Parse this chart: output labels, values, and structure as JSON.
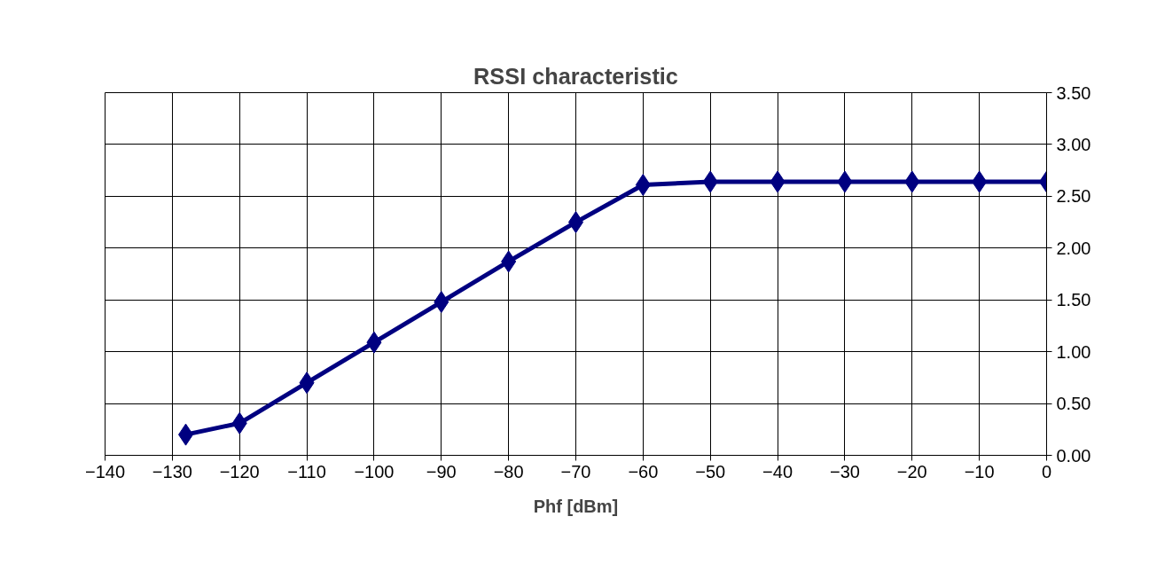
{
  "chart_data": {
    "type": "line",
    "title": "RSSI characteristic",
    "xlabel": "Phf [dBm]",
    "x": [
      -128,
      -120,
      -110,
      -100,
      -90,
      -80,
      -70,
      -60,
      -50,
      -40,
      -30,
      -20,
      -10,
      0
    ],
    "series": [
      {
        "color": "#000080",
        "values": [
          0.2,
          0.31,
          0.7,
          1.09,
          1.48,
          1.87,
          2.25,
          2.61,
          2.64,
          2.64,
          2.64,
          2.64,
          2.64,
          2.64
        ]
      }
    ],
    "xlim": [
      -140,
      0
    ],
    "xticks": [
      -140,
      -130,
      -120,
      -110,
      -100,
      -90,
      -80,
      -70,
      -60,
      -50,
      -40,
      -30,
      -20,
      -10,
      0
    ],
    "ylim": [
      0,
      3.5
    ],
    "yticks": [
      {
        "value": 0,
        "label": "0.00"
      },
      {
        "value": 0.5,
        "label": "0.50"
      },
      {
        "value": 1,
        "label": "1.00"
      },
      {
        "value": 1.5,
        "label": "1.50"
      },
      {
        "value": 2,
        "label": "2.00"
      },
      {
        "value": 2.5,
        "label": "2.50"
      },
      {
        "value": 3,
        "label": "3.00"
      },
      {
        "value": 3.5,
        "label": "3.50"
      }
    ],
    "grid": true,
    "marker": "diamond",
    "line_style": "solid"
  }
}
